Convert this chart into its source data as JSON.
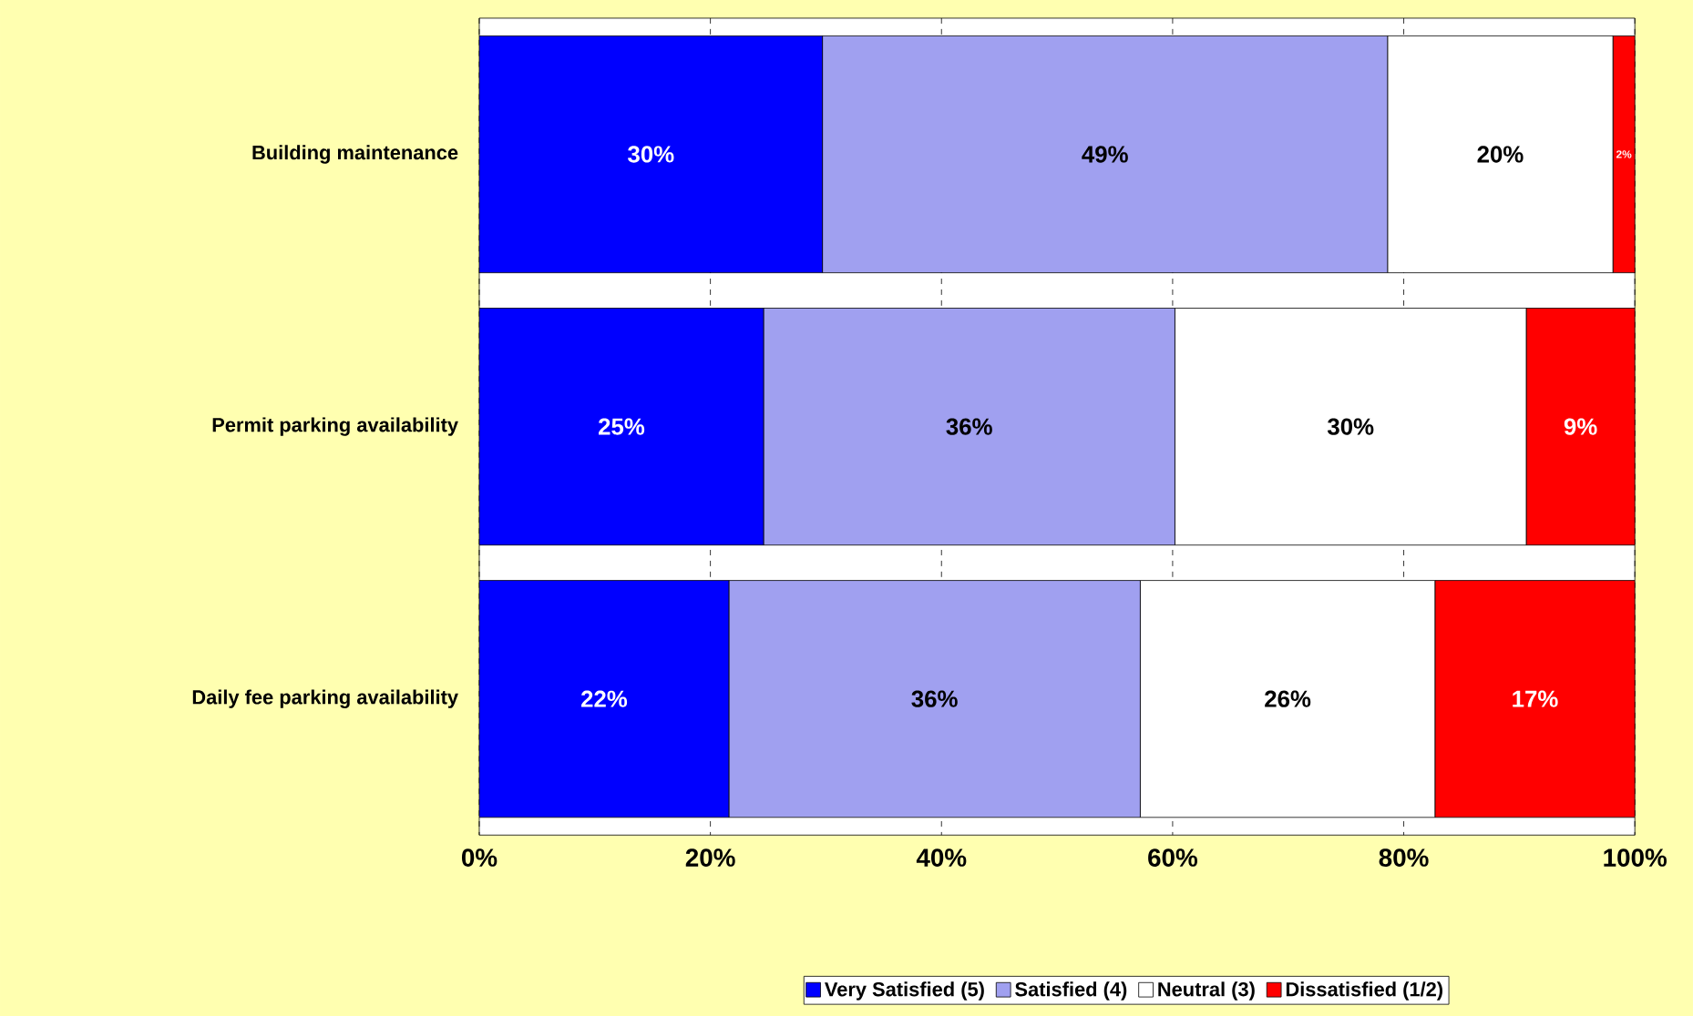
{
  "chart_data": {
    "type": "bar",
    "orientation": "horizontal",
    "stacked": true,
    "categories": [
      "Building maintenance",
      "Permit parking availability",
      "Daily fee parking availability"
    ],
    "series": [
      {
        "name": "Very Satisfied (5)",
        "color": "#0000ff",
        "values": [
          29.7,
          24.6,
          21.6
        ],
        "value_labels": [
          "30%",
          "25%",
          "22%"
        ]
      },
      {
        "name": "Satisfied (4)",
        "color": "#a0a0f0",
        "values": [
          48.9,
          35.6,
          35.6
        ],
        "value_labels": [
          "49%",
          "36%",
          "36%"
        ]
      },
      {
        "name": "Neutral (3)",
        "color": "#ffffff",
        "values": [
          19.5,
          30.4,
          25.5
        ],
        "value_labels": [
          "20%",
          "30%",
          "26%"
        ]
      },
      {
        "name": "Dissatisfied (1/2)",
        "color": "#ff0000",
        "values": [
          1.9,
          9.4,
          17.3
        ],
        "value_labels": [
          "2%",
          "9%",
          "17%"
        ]
      }
    ],
    "xlim": [
      0,
      100
    ],
    "xticks": [
      {
        "value": 0,
        "label": "0%"
      },
      {
        "value": 20,
        "label": "20%"
      },
      {
        "value": 40,
        "label": "40%"
      },
      {
        "value": 60,
        "label": "60%"
      },
      {
        "value": 80,
        "label": "80%"
      },
      {
        "value": 100,
        "label": "100%"
      }
    ],
    "grid": "x",
    "legend": "bottom"
  }
}
